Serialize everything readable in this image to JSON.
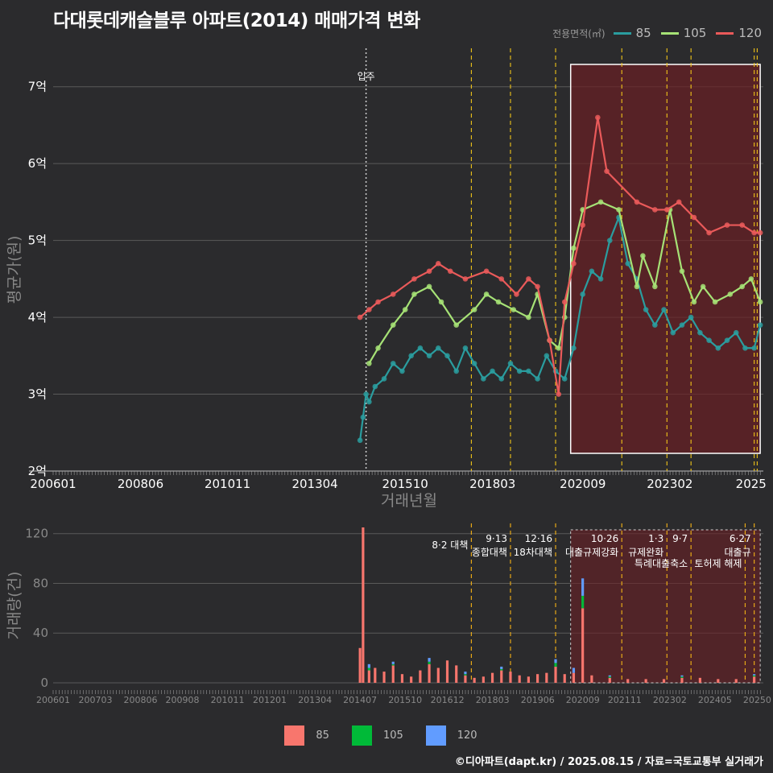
{
  "title": "다대롯데캐슬블루 아파트(2014) 매매가격 변화",
  "footer": "©디아파트(dapt.kr) / 2025.08.15 / 자료=국토교통부 실거래가",
  "colors": {
    "s85": "#2a9d9f",
    "s105": "#a6e276",
    "s120": "#ea5a5a",
    "bar85": "#f8766d",
    "bar105": "#00ba38",
    "bar120": "#619cff",
    "policy": "#f0c419",
    "policy_bottom": "#e6a817"
  },
  "legend_top": {
    "title": "전용면적(㎡)",
    "items": [
      "85",
      "105",
      "120"
    ]
  },
  "legend_bottom": {
    "items": [
      "85",
      "105",
      "120"
    ]
  },
  "chart_data": [
    {
      "type": "line",
      "title": "다대롯데캐슬블루 아파트(2014) 매매가격 변화",
      "xlabel": "거래년월",
      "ylabel": "평균가(원)",
      "ylim": [
        2.0,
        7.5
      ],
      "yticks": [
        "2억",
        "3억",
        "4억",
        "5억",
        "6억",
        "7억"
      ],
      "yticks_values": [
        2,
        3,
        4,
        5,
        6,
        7
      ],
      "xticks": [
        "200601",
        "200806",
        "201011",
        "201304",
        "201510",
        "201803",
        "202009",
        "202302",
        "2025"
      ],
      "move_in_label": "입주",
      "move_in_date": "2014.09",
      "highlight_range": [
        "2020.05",
        "2025.08"
      ],
      "policy_dates": [
        "2017.08",
        "2018.09",
        "2019.12",
        "2021.10",
        "2023.01",
        "2023.09",
        "2025.06",
        "2025.07"
      ],
      "series": [
        {
          "name": "85",
          "x": [
            "2014.07",
            "2014.08",
            "2014.09",
            "2014.10",
            "2014.12",
            "2015.03",
            "2015.06",
            "2015.09",
            "2015.12",
            "2016.03",
            "2016.06",
            "2016.09",
            "2016.12",
            "2017.03",
            "2017.06",
            "2017.09",
            "2017.12",
            "2018.03",
            "2018.06",
            "2018.09",
            "2018.12",
            "2019.03",
            "2019.06",
            "2019.09",
            "2019.12",
            "2020.03",
            "2020.06",
            "2020.09",
            "2020.12",
            "2021.03",
            "2021.06",
            "2021.09",
            "2021.12",
            "2022.03",
            "2022.06",
            "2022.09",
            "2022.12",
            "2023.03",
            "2023.06",
            "2023.09",
            "2023.12",
            "2024.03",
            "2024.06",
            "2024.09",
            "2024.12",
            "2025.03",
            "2025.06",
            "2025.08"
          ],
          "values": [
            2.4,
            2.7,
            3.0,
            2.9,
            3.1,
            3.2,
            3.4,
            3.3,
            3.5,
            3.6,
            3.5,
            3.6,
            3.5,
            3.3,
            3.6,
            3.4,
            3.2,
            3.3,
            3.2,
            3.4,
            3.3,
            3.3,
            3.2,
            3.5,
            3.3,
            3.2,
            3.6,
            4.3,
            4.6,
            4.5,
            5.0,
            5.3,
            4.7,
            4.5,
            4.1,
            3.9,
            4.1,
            3.8,
            3.9,
            4.0,
            3.8,
            3.7,
            3.6,
            3.7,
            3.8,
            3.6,
            3.6,
            3.9
          ]
        },
        {
          "name": "105",
          "x": [
            "2014.10",
            "2015.01",
            "2015.06",
            "2015.10",
            "2016.01",
            "2016.06",
            "2016.10",
            "2017.03",
            "2017.09",
            "2018.01",
            "2018.05",
            "2018.10",
            "2019.03",
            "2019.06",
            "2019.10",
            "2020.01",
            "2020.03",
            "2020.06",
            "2020.09",
            "2021.03",
            "2021.09",
            "2022.03",
            "2022.05",
            "2022.09",
            "2023.02",
            "2023.06",
            "2023.10",
            "2024.01",
            "2024.05",
            "2024.10",
            "2025.02",
            "2025.05",
            "2025.08"
          ],
          "values": [
            3.4,
            3.6,
            3.9,
            4.1,
            4.3,
            4.4,
            4.2,
            3.9,
            4.1,
            4.3,
            4.2,
            4.1,
            4.0,
            4.3,
            3.7,
            3.6,
            4.0,
            4.9,
            5.4,
            5.5,
            5.4,
            4.4,
            4.8,
            4.4,
            5.4,
            4.6,
            4.2,
            4.4,
            4.2,
            4.3,
            4.4,
            4.5,
            4.2
          ]
        },
        {
          "name": "120",
          "x": [
            "2014.07",
            "2014.10",
            "2015.01",
            "2015.06",
            "2016.01",
            "2016.06",
            "2016.09",
            "2017.01",
            "2017.06",
            "2018.01",
            "2018.06",
            "2018.11",
            "2019.03",
            "2019.06",
            "2019.10",
            "2020.01",
            "2020.03",
            "2020.06",
            "2020.09",
            "2021.02",
            "2021.05",
            "2022.03",
            "2022.09",
            "2023.01",
            "2023.05",
            "2023.10",
            "2024.03",
            "2024.09",
            "2025.02",
            "2025.06",
            "2025.08"
          ],
          "values": [
            4.0,
            4.1,
            4.2,
            4.3,
            4.5,
            4.6,
            4.7,
            4.6,
            4.5,
            4.6,
            4.5,
            4.3,
            4.5,
            4.4,
            3.7,
            3.0,
            4.2,
            4.7,
            5.2,
            6.6,
            5.9,
            5.5,
            5.4,
            5.4,
            5.5,
            5.3,
            5.1,
            5.2,
            5.2,
            5.1,
            5.1
          ]
        }
      ]
    },
    {
      "type": "bar",
      "xlabel": "",
      "ylabel": "거래량(건)",
      "ylim": [
        0,
        125
      ],
      "yticks": [
        "0",
        "40",
        "80",
        "120"
      ],
      "yticks_values": [
        0,
        40,
        80,
        120
      ],
      "xticks": [
        "200601",
        "200703",
        "200806",
        "200908",
        "201011",
        "201201",
        "201304",
        "201407",
        "201510",
        "201612",
        "201803",
        "201906",
        "202009",
        "202111",
        "202302",
        "202405",
        "20250"
      ],
      "annotations": [
        {
          "date": "8·2 대책",
          "x": "2017.08"
        },
        {
          "date": "9·13",
          "label": "종합대책",
          "x": "2018.09"
        },
        {
          "date": "12·16",
          "label": "18차대책",
          "x": "2019.12"
        },
        {
          "date": "10·26",
          "label": "대출규제강화",
          "x": "2021.10"
        },
        {
          "date": "1·3",
          "label": "규제완화",
          "x": "2023.01"
        },
        {
          "date": "9·7",
          "label": "특례대출축소",
          "x": "2023.09"
        },
        {
          "date": "",
          "label": "토허제 해제",
          "x": "2025.03"
        },
        {
          "date": "6·27",
          "label": "대출규",
          "x": "2025.06"
        }
      ],
      "series": [
        {
          "name": "85",
          "x": [
            "2014.07",
            "2014.08",
            "2014.10",
            "2014.12",
            "2015.03",
            "2015.06",
            "2015.09",
            "2015.12",
            "2016.03",
            "2016.06",
            "2016.09",
            "2016.12",
            "2017.03",
            "2017.06",
            "2017.09",
            "2017.12",
            "2018.03",
            "2018.06",
            "2018.09",
            "2018.12",
            "2019.03",
            "2019.06",
            "2019.09",
            "2019.12",
            "2020.03",
            "2020.06",
            "2020.09",
            "2020.12",
            "2021.06",
            "2021.12",
            "2022.06",
            "2022.12",
            "2023.06",
            "2023.12",
            "2024.06",
            "2024.12",
            "2025.06"
          ],
          "values": [
            28,
            125,
            10,
            12,
            9,
            14,
            7,
            5,
            10,
            15,
            12,
            18,
            14,
            6,
            4,
            5,
            8,
            10,
            9,
            6,
            5,
            7,
            8,
            13,
            7,
            8,
            60,
            6,
            4,
            3,
            3,
            3,
            4,
            4,
            3,
            3,
            5
          ]
        },
        {
          "name": "105",
          "x": [
            "2014.10",
            "2015.06",
            "2016.06",
            "2017.06",
            "2018.06",
            "2019.12",
            "2020.09",
            "2021.06",
            "2023.06",
            "2025.06"
          ],
          "values": [
            2,
            1,
            2,
            1,
            1,
            3,
            10,
            1,
            1,
            1
          ]
        },
        {
          "name": "120",
          "x": [
            "2014.10",
            "2015.06",
            "2016.06",
            "2017.06",
            "2018.06",
            "2019.12",
            "2020.06",
            "2020.09",
            "2021.06",
            "2023.06",
            "2025.06"
          ],
          "values": [
            3,
            2,
            3,
            2,
            2,
            3,
            4,
            14,
            1,
            1,
            1
          ]
        }
      ]
    }
  ]
}
